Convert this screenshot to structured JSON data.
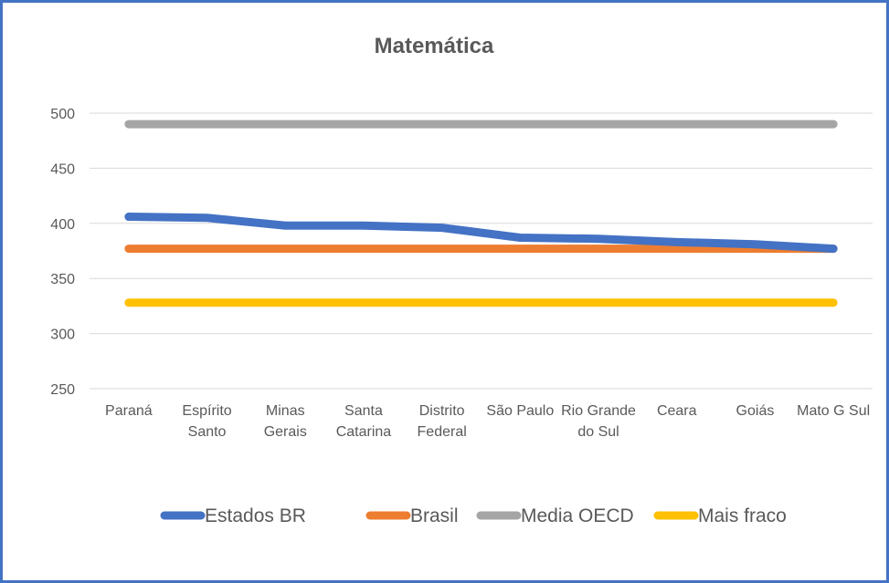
{
  "chart_data": {
    "type": "line",
    "title": "Matemática",
    "xlabel": "",
    "ylabel": "",
    "ylim": [
      250,
      500
    ],
    "yticks": [
      "250",
      "300",
      "350",
      "400",
      "450",
      "500"
    ],
    "grid": true,
    "legend_position": "bottom",
    "categories": [
      [
        "Paraná"
      ],
      [
        "Espírito",
        "Santo"
      ],
      [
        "Minas",
        "Gerais"
      ],
      [
        "Santa",
        "Catarina"
      ],
      [
        "Distrito",
        "Federal"
      ],
      [
        "São Paulo"
      ],
      [
        "Rio Grande",
        "do Sul"
      ],
      [
        "Ceara"
      ],
      [
        "Goiás"
      ],
      [
        "Mato G Sul"
      ]
    ],
    "series": [
      {
        "name": "Estados BR",
        "color": "#4472c4",
        "values": [
          406,
          405,
          398,
          398,
          396,
          387,
          386,
          383,
          381,
          377
        ]
      },
      {
        "name": "Brasil",
        "color": "#ed7d31",
        "values": [
          377,
          377,
          377,
          377,
          377,
          377,
          377,
          377,
          377,
          377
        ]
      },
      {
        "name": "Media OECD",
        "color": "#a5a5a5",
        "values": [
          490,
          490,
          490,
          490,
          490,
          490,
          490,
          490,
          490,
          490
        ]
      },
      {
        "name": "Mais fraco",
        "color": "#ffc000",
        "values": [
          328,
          328,
          328,
          328,
          328,
          328,
          328,
          328,
          328,
          328
        ]
      }
    ]
  }
}
